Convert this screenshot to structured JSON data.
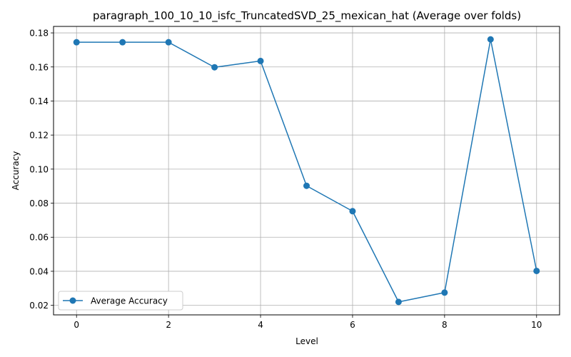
{
  "chart_data": {
    "type": "line",
    "title": "paragraph_100_10_10_isfc_TruncatedSVD_25_mexican_hat (Average over folds)",
    "xlabel": "Level",
    "ylabel": "Accuracy",
    "x": [
      0,
      1,
      2,
      3,
      4,
      5,
      6,
      7,
      8,
      9,
      10
    ],
    "series": [
      {
        "name": "Average Accuracy",
        "color": "#1f77b4",
        "marker": "circle",
        "values": [
          0.1745,
          0.1745,
          0.1745,
          0.1598,
          0.1635,
          0.0902,
          0.0753,
          0.022,
          0.0275,
          0.1762,
          0.0402
        ]
      }
    ],
    "xlim": [
      -0.5,
      10.5
    ],
    "ylim": [
      0.0144,
      0.1838
    ],
    "xticks": [
      0,
      2,
      4,
      6,
      8,
      10
    ],
    "yticks": [
      0.02,
      0.04,
      0.06,
      0.08,
      0.1,
      0.12,
      0.14,
      0.16,
      0.18
    ],
    "ytick_labels": [
      "0.02",
      "0.04",
      "0.06",
      "0.08",
      "0.10",
      "0.12",
      "0.14",
      "0.16",
      "0.18"
    ],
    "grid": true,
    "grid_color": "#b0b0b0",
    "legend_position": "lower-left"
  }
}
